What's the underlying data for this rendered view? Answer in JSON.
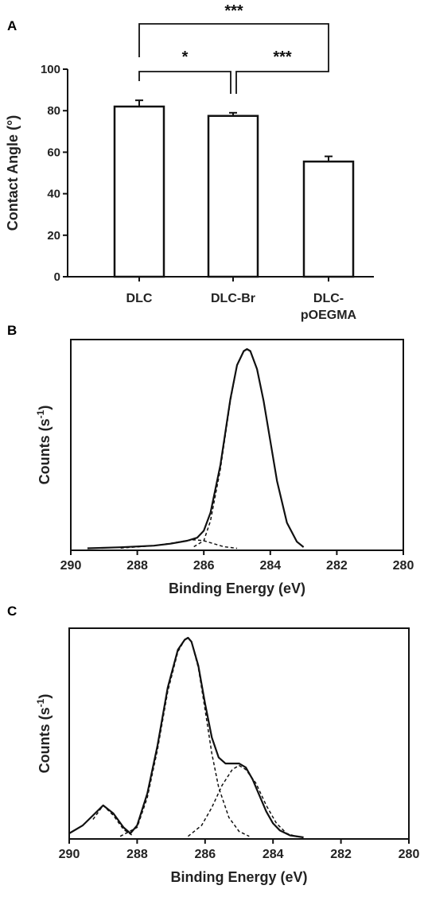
{
  "chart_data": [
    {
      "panel": "A",
      "type": "bar",
      "categories": [
        "DLC",
        "DLC-Br",
        "DLC-\npOEGMA"
      ],
      "values": [
        82,
        77.5,
        55.5
      ],
      "errors": [
        3,
        1.5,
        2.5
      ],
      "ylabel": "Contact Angle (°)",
      "xlabel": "",
      "ylim": [
        0,
        100
      ],
      "yticks": [
        0,
        20,
        40,
        60,
        80,
        100
      ],
      "bar_fill": "#ffffff",
      "bar_stroke": "#111111",
      "significance": [
        {
          "from": 0,
          "to": 1,
          "label": "*"
        },
        {
          "from": 1,
          "to": 2,
          "label": "***"
        },
        {
          "from": 0,
          "to": 2,
          "label": "***"
        }
      ]
    },
    {
      "panel": "B",
      "type": "line",
      "xlabel": "Binding Energy (eV)",
      "ylabel": "Counts (s-1)",
      "xlim": [
        290,
        280
      ],
      "xticks": [
        290,
        288,
        286,
        284,
        282,
        280
      ],
      "series": [
        {
          "style": "solid",
          "values_x": [
            289.5,
            288.5,
            287.5,
            287,
            286.5,
            286.2,
            286,
            285.8,
            285.5,
            285.2,
            285,
            284.8,
            284.7,
            284.6,
            284.4,
            284.2,
            284,
            283.8,
            283.5,
            283.2,
            283
          ],
          "values_y": [
            0.002,
            0.007,
            0.015,
            0.025,
            0.04,
            0.055,
            0.09,
            0.18,
            0.42,
            0.75,
            0.92,
            0.99,
            1.0,
            0.99,
            0.9,
            0.74,
            0.54,
            0.34,
            0.13,
            0.035,
            0.008
          ]
        },
        {
          "style": "dashed",
          "values_x": [
            286.3,
            286,
            285.8,
            285.5,
            285.2,
            285,
            284.8,
            284.7,
            284.6,
            284.4,
            284.2,
            284,
            283.8,
            283.5,
            283.2,
            283
          ],
          "values_y": [
            0.01,
            0.04,
            0.14,
            0.4,
            0.74,
            0.92,
            0.99,
            1.0,
            0.99,
            0.9,
            0.74,
            0.54,
            0.34,
            0.13,
            0.035,
            0.008
          ]
        },
        {
          "style": "dashed",
          "values_x": [
            288.5,
            287.5,
            287,
            286.6,
            286.3,
            286,
            285.7,
            285.4,
            285
          ],
          "values_y": [
            0.003,
            0.015,
            0.027,
            0.038,
            0.045,
            0.04,
            0.025,
            0.01,
            0.002
          ]
        }
      ]
    },
    {
      "panel": "C",
      "type": "line",
      "xlabel": "Binding Energy (eV)",
      "ylabel": "Counts (s-1)",
      "xlim": [
        290,
        280
      ],
      "xticks": [
        290,
        288,
        286,
        284,
        282,
        280
      ],
      "series": [
        {
          "style": "solid",
          "values_x": [
            290,
            289.6,
            289.3,
            289,
            288.7,
            288.4,
            288.2,
            288,
            287.7,
            287.4,
            287.1,
            286.8,
            286.6,
            286.5,
            286.4,
            286.2,
            286,
            285.8,
            285.6,
            285.4,
            285.2,
            285,
            284.8,
            284.6,
            284.4,
            284.2,
            284,
            283.8,
            283.5,
            283.1
          ],
          "values_y": [
            0.02,
            0.06,
            0.11,
            0.16,
            0.12,
            0.05,
            0.02,
            0.06,
            0.22,
            0.46,
            0.75,
            0.94,
            0.99,
            1.0,
            0.98,
            0.86,
            0.67,
            0.5,
            0.4,
            0.37,
            0.37,
            0.37,
            0.35,
            0.29,
            0.21,
            0.13,
            0.07,
            0.035,
            0.01,
            0.0
          ]
        },
        {
          "style": "dashed",
          "values_x": [
            289.3,
            289,
            288.7,
            288.4,
            288.1
          ],
          "values_y": [
            0.09,
            0.16,
            0.11,
            0.04,
            0.005
          ]
        },
        {
          "style": "dashed",
          "values_x": [
            288.5,
            288,
            287.7,
            287.4,
            287.1,
            286.8,
            286.6,
            286.5,
            286.4,
            286.2,
            286,
            285.8,
            285.6,
            285.3,
            285,
            284.7
          ],
          "values_y": [
            0.005,
            0.05,
            0.2,
            0.44,
            0.73,
            0.93,
            0.99,
            1.0,
            0.98,
            0.85,
            0.64,
            0.42,
            0.25,
            0.1,
            0.03,
            0.005
          ]
        },
        {
          "style": "dashed",
          "values_x": [
            286.5,
            286.1,
            285.8,
            285.5,
            285.2,
            285,
            284.8,
            284.5,
            284.2,
            283.9,
            283.6,
            283.3
          ],
          "values_y": [
            0.005,
            0.06,
            0.15,
            0.26,
            0.34,
            0.36,
            0.34,
            0.27,
            0.16,
            0.07,
            0.02,
            0.003
          ]
        }
      ]
    }
  ]
}
